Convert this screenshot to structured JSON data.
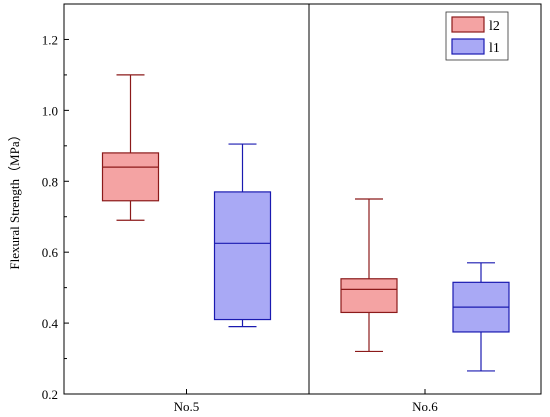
{
  "chart_data": {
    "type": "boxplot",
    "title": "",
    "xlabel": "",
    "ylabel": "Flexural Strength（MPa）",
    "ylim": [
      0.2,
      1.3
    ],
    "yticks": [
      "0.2",
      "0.4",
      "0.6",
      "0.8",
      "1.0",
      "1.2"
    ],
    "grid": false,
    "legend_position": "top-right",
    "categories": [
      "No.5",
      "No.6"
    ],
    "series": [
      {
        "name": "l2",
        "fill": "#f4a3a3",
        "stroke": "#8b1a1a",
        "boxes": [
          {
            "category": "No.5",
            "min": 0.69,
            "q1": 0.745,
            "median": 0.84,
            "q3": 0.88,
            "max": 1.1
          },
          {
            "category": "No.6",
            "min": 0.32,
            "q1": 0.43,
            "median": 0.495,
            "q3": 0.525,
            "max": 0.75
          }
        ]
      },
      {
        "name": "l1",
        "fill": "#a9a9f5",
        "stroke": "#1a1ab0",
        "boxes": [
          {
            "category": "No.5",
            "min": 0.39,
            "q1": 0.41,
            "median": 0.625,
            "q3": 0.77,
            "max": 0.905
          },
          {
            "category": "No.6",
            "min": 0.265,
            "q1": 0.375,
            "median": 0.445,
            "q3": 0.515,
            "max": 0.57
          }
        ]
      }
    ]
  }
}
